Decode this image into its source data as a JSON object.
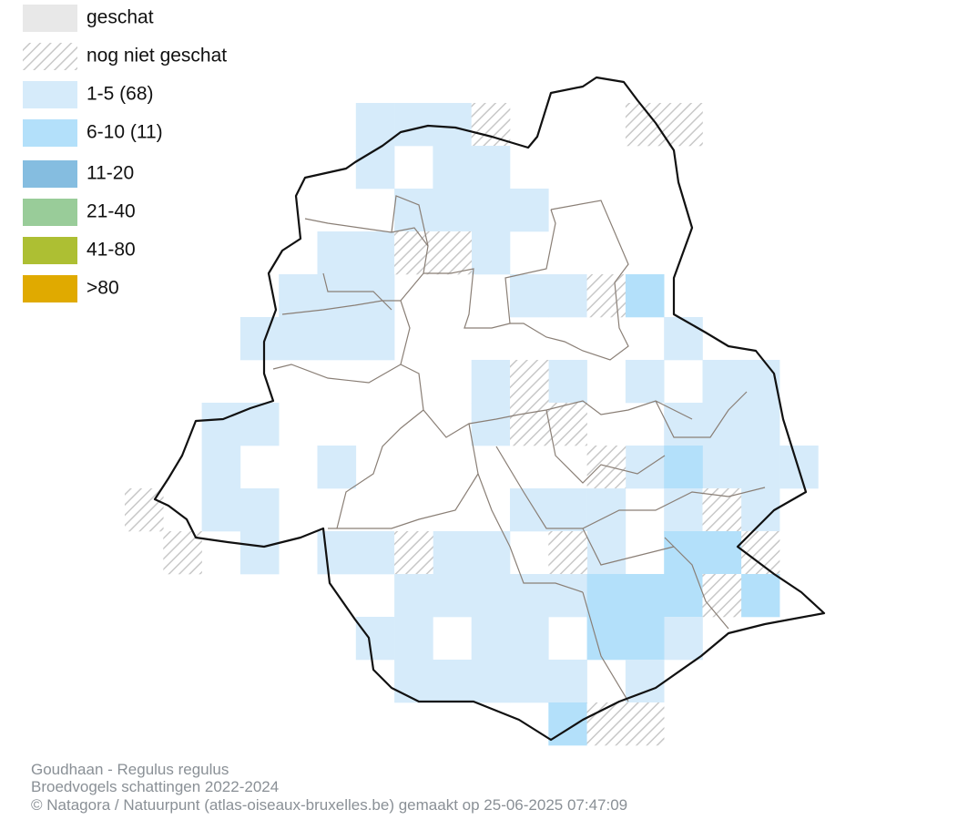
{
  "legend": [
    {
      "label": "geschat",
      "color": "#e8e8e8"
    },
    {
      "label": "nog niet geschat",
      "color": "#c8c8c8",
      "pattern": "hatch"
    },
    {
      "label": "1-5 (68)",
      "color": "#d6ebfa"
    },
    {
      "label": "6-10 (11)",
      "color": "#b3e0fa"
    },
    {
      "label": "11-20",
      "color": "#85bde0"
    },
    {
      "label": "21-40",
      "color": "#99cc99"
    },
    {
      "label": "41-80",
      "color": "#adbf33"
    },
    {
      "label": ">80",
      "color": "#e0aa00"
    }
  ],
  "footer": {
    "species": "Goudhaan - Regulus regulus",
    "subtitle": "Broedvogels schattingen 2022-2024",
    "credit": "© Natagora / Natuurpunt (atlas-oiseaux-bruxelles.be) gemaakt op 25-06-2025 07:47:09"
  }
}
